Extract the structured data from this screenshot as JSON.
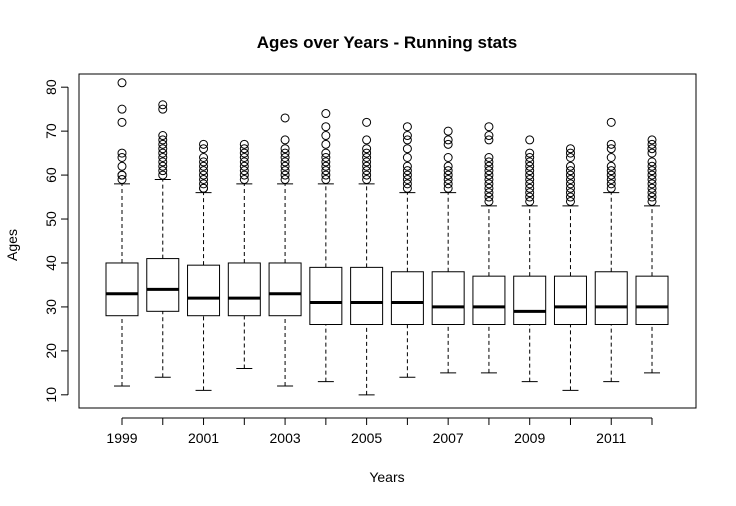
{
  "chart_data": {
    "type": "boxplot",
    "title": "Ages over Years - Running stats",
    "xlabel": "Years",
    "ylabel": "Ages",
    "ylim": [
      7,
      83
    ],
    "y_ticks": [
      10,
      20,
      30,
      40,
      50,
      60,
      70,
      80
    ],
    "categories": [
      "1999",
      "2000",
      "2001",
      "2002",
      "2003",
      "2004",
      "2005",
      "2006",
      "2007",
      "2008",
      "2009",
      "2010",
      "2011",
      "2012"
    ],
    "x_tick_labels_shown": [
      "1999",
      "2001",
      "2003",
      "2005",
      "2007",
      "2009",
      "2011"
    ],
    "grid": false,
    "series": [
      {
        "boxes": [
          {
            "category": "1999",
            "whisker_low": 12,
            "q1": 28,
            "median": 33,
            "q3": 40,
            "whisker_high": 58,
            "outliers": [
              59,
              60,
              60,
              62,
              64,
              65,
              72,
              75,
              81
            ]
          },
          {
            "category": "2000",
            "whisker_low": 14,
            "q1": 29,
            "median": 34,
            "q3": 41,
            "whisker_high": 59,
            "outliers": [
              60,
              61,
              62,
              63,
              64,
              65,
              66,
              67,
              68,
              69,
              75,
              76
            ]
          },
          {
            "category": "2001",
            "whisker_low": 11,
            "q1": 28,
            "median": 32,
            "q3": 39.5,
            "whisker_high": 56,
            "outliers": [
              57,
              57,
              58,
              59,
              60,
              61,
              62,
              63,
              64,
              66,
              67
            ]
          },
          {
            "category": "2002",
            "whisker_low": 16,
            "q1": 28,
            "median": 32,
            "q3": 40,
            "whisker_high": 58,
            "outliers": [
              59,
              60,
              61,
              62,
              63,
              64,
              65,
              66,
              67
            ]
          },
          {
            "category": "2003",
            "whisker_low": 12,
            "q1": 28,
            "median": 33,
            "q3": 40,
            "whisker_high": 58,
            "outliers": [
              59,
              60,
              61,
              62,
              63,
              64,
              65,
              66,
              68,
              73
            ]
          },
          {
            "category": "2004",
            "whisker_low": 13,
            "q1": 26,
            "median": 31,
            "q3": 39,
            "whisker_high": 58,
            "outliers": [
              59,
              60,
              61,
              62,
              63,
              64,
              65,
              67,
              69,
              71,
              74
            ]
          },
          {
            "category": "2005",
            "whisker_low": 10,
            "q1": 26,
            "median": 31,
            "q3": 39,
            "whisker_high": 58,
            "outliers": [
              59,
              60,
              61,
              62,
              63,
              64,
              65,
              66,
              68,
              72
            ]
          },
          {
            "category": "2006",
            "whisker_low": 14,
            "q1": 26,
            "median": 31,
            "q3": 38,
            "whisker_high": 56,
            "outliers": [
              57,
              58,
              59,
              60,
              61,
              62,
              64,
              66,
              68,
              69,
              71
            ]
          },
          {
            "category": "2007",
            "whisker_low": 15,
            "q1": 26,
            "median": 30,
            "q3": 38,
            "whisker_high": 56,
            "outliers": [
              57,
              58,
              59,
              60,
              61,
              62,
              64,
              67,
              68,
              70
            ]
          },
          {
            "category": "2008",
            "whisker_low": 15,
            "q1": 26,
            "median": 30,
            "q3": 37,
            "whisker_high": 53,
            "outliers": [
              54,
              55,
              56,
              57,
              58,
              59,
              60,
              61,
              62,
              63,
              64,
              68,
              69,
              71
            ]
          },
          {
            "category": "2009",
            "whisker_low": 13,
            "q1": 26,
            "median": 29,
            "q3": 37,
            "whisker_high": 53,
            "outliers": [
              54,
              55,
              56,
              57,
              58,
              59,
              60,
              61,
              62,
              63,
              64,
              65,
              68
            ]
          },
          {
            "category": "2010",
            "whisker_low": 11,
            "q1": 26,
            "median": 30,
            "q3": 37,
            "whisker_high": 53,
            "outliers": [
              54,
              55,
              56,
              57,
              58,
              59,
              60,
              61,
              62,
              64,
              65,
              66
            ]
          },
          {
            "category": "2011",
            "whisker_low": 13,
            "q1": 26,
            "median": 30,
            "q3": 38,
            "whisker_high": 56,
            "outliers": [
              57,
              58,
              59,
              60,
              61,
              62,
              64,
              66,
              67,
              72
            ]
          },
          {
            "category": "2012",
            "whisker_low": 15,
            "q1": 26,
            "median": 30,
            "q3": 37,
            "whisker_high": 53,
            "outliers": [
              54,
              55,
              56,
              57,
              58,
              59,
              60,
              61,
              62,
              63,
              65,
              66,
              67,
              68
            ]
          }
        ]
      }
    ],
    "colors": {
      "box_fill": "#ffffff",
      "stroke": "#000000"
    }
  }
}
